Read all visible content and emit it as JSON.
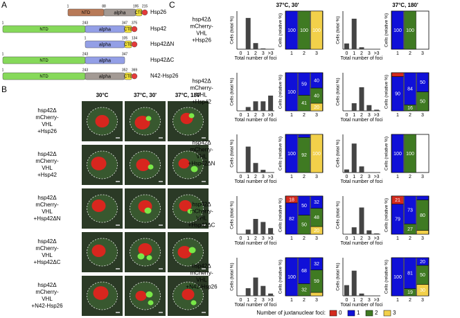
{
  "panel_a": {
    "letter": "A",
    "constructs": [
      {
        "name": "Hsp26",
        "domains": [
          "NTD",
          "alpha",
          "CTE"
        ],
        "residues": [
          "1",
          "88",
          "195",
          "215"
        ]
      },
      {
        "name": "Hsp42",
        "domains": [
          "NTD",
          "alpha",
          "CTE"
        ],
        "residues": [
          "1",
          "243",
          "347",
          "375"
        ]
      },
      {
        "name": "Hsp42ΔN",
        "domains": [
          "alpha",
          "CTE"
        ],
        "residues": [
          "1",
          "105",
          "134"
        ]
      },
      {
        "name": "Hsp42ΔC",
        "domains": [
          "NTD",
          "alpha"
        ],
        "residues": [
          "1",
          "243",
          "347"
        ]
      },
      {
        "name": "N42-Hsp26",
        "domains": [
          "NTD",
          "alpha",
          "CTE"
        ],
        "residues": [
          "1",
          "243",
          "352",
          "369"
        ]
      }
    ]
  },
  "panel_b": {
    "letter": "B",
    "conditions": [
      "30°C",
      "37°C, 30'",
      "37°C, 180'"
    ],
    "strains": [
      [
        "hsp42Δ",
        "mCherry-",
        "VHL",
        "+Hsp26"
      ],
      [
        "hsp42Δ",
        "mCherry-",
        "VHL",
        "+Hsp42"
      ],
      [
        "hsp42Δ",
        "mCherry-",
        "VHL",
        "+Hsp42ΔN"
      ],
      [
        "hsp42Δ",
        "mCherry-",
        "VHL",
        "+Hsp42ΔC"
      ],
      [
        "hsp42Δ",
        "mCherry-",
        "VHL",
        "+N42-Hsp26"
      ]
    ]
  },
  "panel_c": {
    "letter": "C",
    "conditions": [
      "37°C, 30'",
      "37°C, 180'"
    ],
    "hist_ylabel": "Cells (total %)",
    "stack_ylabel": "Cells (relative %)",
    "hist_xlabel": "Total number of foci",
    "hist_categories": [
      "0",
      "1",
      "2",
      "3",
      ">3"
    ],
    "stack_categories": [
      "1",
      "2",
      "3"
    ],
    "ylim": [
      0,
      100
    ],
    "strains": [
      [
        "hsp42Δ",
        "mCherry-",
        "VHL",
        "+Hsp26"
      ],
      [
        "hsp42Δ",
        "mCherry-",
        "VHL",
        "+Hsp42"
      ],
      [
        "hsp42Δ",
        "mCherry-",
        "VHL",
        "+Hsp42ΔN"
      ],
      [
        "hsp42Δ",
        "mCherry-",
        "VHL",
        "+Hsp42ΔC"
      ],
      [
        "hsp42Δ",
        "mCherry-",
        "VHL",
        "+N42-Hsp26"
      ]
    ],
    "data": [
      [
        {
          "hist": [
            0,
            82,
            16,
            2,
            0
          ],
          "stack": [
            [
              0,
              100,
              0,
              0
            ],
            [
              0,
              0,
              100,
              0
            ],
            [
              0,
              0,
              0,
              100
            ]
          ]
        },
        {
          "hist": [
            15,
            80,
            5,
            0,
            0
          ],
          "stack": [
            [
              0,
              100,
              0,
              0
            ],
            [
              0,
              0,
              100,
              0
            ],
            [
              0,
              0,
              0,
              0
            ]
          ]
        }
      ],
      [
        {
          "hist": [
            0,
            10,
            25,
            25,
            40
          ],
          "stack": [
            [
              0,
              100,
              0,
              0
            ],
            [
              0,
              59,
              41,
              0
            ],
            [
              0,
              40,
              40,
              20
            ]
          ]
        },
        {
          "hist": [
            0,
            20,
            62,
            15,
            3
          ],
          "stack": [
            [
              10,
              90,
              0,
              0
            ],
            [
              0,
              84,
              16,
              0
            ],
            [
              0,
              50,
              50,
              0
            ]
          ]
        }
      ],
      [
        {
          "hist": [
            0,
            68,
            25,
            7,
            0
          ],
          "stack": [
            [
              0,
              100,
              0,
              0
            ],
            [
              0,
              8,
              92,
              0
            ],
            [
              0,
              0,
              0,
              100
            ]
          ]
        },
        {
          "hist": [
            8,
            76,
            16,
            0,
            0
          ],
          "stack": [
            [
              0,
              100,
              0,
              0
            ],
            [
              0,
              0,
              100,
              0
            ],
            [
              0,
              0,
              0,
              0
            ]
          ]
        }
      ],
      [
        {
          "hist": [
            0,
            12,
            40,
            32,
            16
          ],
          "stack": [
            [
              18,
              82,
              0,
              0
            ],
            [
              0,
              50,
              50,
              0
            ],
            [
              0,
              32,
              48,
              20
            ]
          ]
        },
        {
          "hist": [
            0,
            18,
            70,
            10,
            2
          ],
          "stack": [
            [
              21,
              79,
              0,
              0
            ],
            [
              0,
              73,
              27,
              0
            ],
            [
              0,
              10,
              80,
              10
            ]
          ]
        }
      ],
      [
        {
          "hist": [
            0,
            20,
            48,
            26,
            6
          ],
          "stack": [
            [
              0,
              100,
              0,
              0
            ],
            [
              0,
              68,
              32,
              0
            ],
            [
              0,
              32,
              59,
              9
            ]
          ]
        },
        {
          "hist": [
            28,
            66,
            6,
            0,
            0
          ],
          "stack": [
            [
              0,
              100,
              0,
              0
            ],
            [
              0,
              81,
              19,
              0
            ],
            [
              0,
              20,
              50,
              30
            ]
          ]
        }
      ]
    ],
    "legend": {
      "title": "Number of juxtanuclear foci:",
      "items": [
        {
          "label": "0",
          "color": "#d42a1e"
        },
        {
          "label": "1",
          "color": "#1010d8"
        },
        {
          "label": "2",
          "color": "#3f7a22"
        },
        {
          "label": "3",
          "color": "#f2d04a"
        }
      ]
    }
  }
}
